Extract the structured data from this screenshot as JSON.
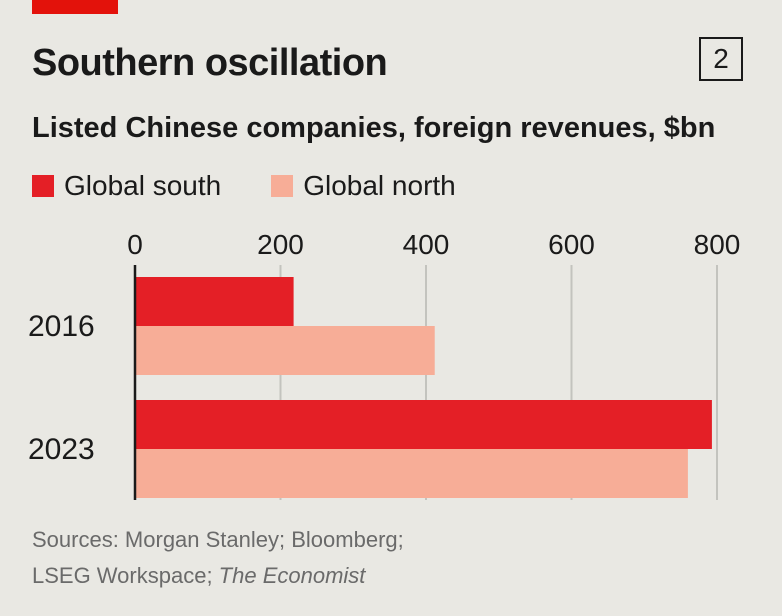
{
  "header": {
    "title": "Southern oscillation",
    "chart_number": "2",
    "subtitle": "Listed Chinese companies, foreign revenues, $bn"
  },
  "colors": {
    "accent": "#e3120b",
    "global_south": "#e41f26",
    "global_north": "#f7ad97",
    "grid": "#c3c3be",
    "axis": "#1a1a1a"
  },
  "chart_data": {
    "type": "bar",
    "orientation": "horizontal",
    "title": "Southern oscillation",
    "subtitle": "Listed Chinese companies, foreign revenues, $bn",
    "categories": [
      "2016",
      "2023"
    ],
    "series": [
      {
        "name": "Global south",
        "values": [
          218,
          793
        ]
      },
      {
        "name": "Global north",
        "values": [
          412,
          760
        ]
      }
    ],
    "xlim": [
      0,
      800
    ],
    "ticks": [
      0,
      200,
      400,
      600,
      800
    ],
    "tick_labels": [
      "0",
      "200",
      "400",
      "600",
      "800"
    ],
    "grid": true,
    "legend_position": "top-left"
  },
  "footer": {
    "source_line1": "Sources: Morgan Stanley; Bloomberg;",
    "source_line2_plain": "LSEG Workspace; ",
    "source_line2_italic": "The Economist"
  }
}
